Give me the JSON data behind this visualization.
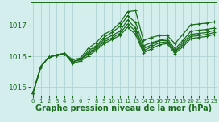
{
  "bg_color": "#d4eeee",
  "grid_color": "#aacece",
  "line_color": "#1a6b1a",
  "marker_color": "#1a6b1a",
  "xlabel": "Graphe pression niveau de la mer (hPa)",
  "ylim": [
    1014.75,
    1017.75
  ],
  "xlim": [
    -0.3,
    23.3
  ],
  "yticks": [
    1015,
    1016,
    1017
  ],
  "xticks": [
    0,
    1,
    2,
    3,
    4,
    5,
    6,
    7,
    8,
    9,
    10,
    11,
    12,
    13,
    14,
    15,
    16,
    17,
    18,
    19,
    20,
    21,
    22,
    23
  ],
  "lines": [
    [
      1014.82,
      1015.68,
      1015.98,
      1016.05,
      1016.1,
      1015.9,
      1015.95,
      1016.27,
      1016.45,
      1016.72,
      1016.85,
      1017.08,
      1017.45,
      1017.48,
      1016.52,
      1016.62,
      1016.68,
      1016.68,
      1016.42,
      1016.72,
      1017.02,
      1017.05,
      1017.08,
      1017.12
    ],
    [
      1014.82,
      1015.68,
      1015.98,
      1016.05,
      1016.1,
      1015.83,
      1015.9,
      1016.18,
      1016.35,
      1016.62,
      1016.78,
      1016.97,
      1017.32,
      1017.1,
      1016.35,
      1016.45,
      1016.52,
      1016.58,
      1016.25,
      1016.52,
      1016.82,
      1016.85,
      1016.88,
      1016.92
    ],
    [
      1014.82,
      1015.68,
      1015.98,
      1016.05,
      1016.1,
      1015.83,
      1015.9,
      1016.12,
      1016.3,
      1016.55,
      1016.68,
      1016.82,
      1017.18,
      1016.92,
      1016.25,
      1016.38,
      1016.52,
      1016.52,
      1016.18,
      1016.45,
      1016.72,
      1016.75,
      1016.78,
      1016.85
    ],
    [
      1014.82,
      1015.68,
      1015.98,
      1016.05,
      1016.1,
      1015.83,
      1015.9,
      1016.08,
      1016.25,
      1016.48,
      1016.6,
      1016.75,
      1017.05,
      1016.82,
      1016.18,
      1016.32,
      1016.45,
      1016.48,
      1016.15,
      1016.38,
      1016.65,
      1016.68,
      1016.72,
      1016.78
    ],
    [
      1014.82,
      1015.68,
      1015.98,
      1016.05,
      1016.1,
      1015.78,
      1015.85,
      1016.02,
      1016.2,
      1016.42,
      1016.55,
      1016.68,
      1016.95,
      1016.72,
      1016.12,
      1016.25,
      1016.38,
      1016.42,
      1016.1,
      1016.32,
      1016.58,
      1016.62,
      1016.65,
      1016.72
    ]
  ],
  "line_width": 0.9,
  "marker_size": 2.5
}
